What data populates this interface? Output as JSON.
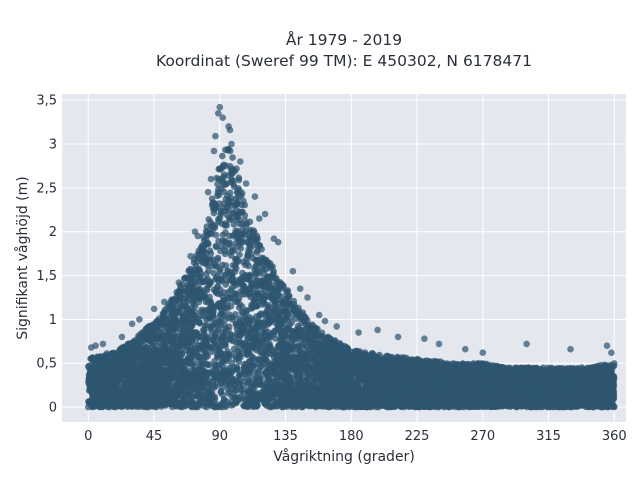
{
  "chart_data": {
    "type": "scatter",
    "title_line1": "År 1979 - 2019",
    "title_line2": "Koordinat (Sweref 99 TM): E 450302, N 6178471",
    "xlabel": "Vågriktning (grader)",
    "ylabel": "Signifikant våghöjd (m)",
    "xlim": [
      -18,
      368
    ],
    "ylim": [
      -0.17,
      3.57
    ],
    "x_ticks": [
      0,
      45,
      90,
      135,
      180,
      225,
      270,
      315,
      360
    ],
    "x_tick_labels": [
      "0",
      "45",
      "90",
      "135",
      "180",
      "225",
      "270",
      "315",
      "360"
    ],
    "y_ticks": [
      0,
      0.5,
      1,
      1.5,
      2,
      2.5,
      3,
      3.5
    ],
    "y_tick_labels": [
      "0",
      "0,5",
      "1",
      "1,5",
      "2",
      "2,5",
      "3",
      "3,5"
    ],
    "grid": true,
    "marker_color": "#2e5670",
    "background_color": "#e5e7ef",
    "envelope": {
      "x": [
        0,
        10,
        20,
        30,
        40,
        50,
        60,
        70,
        80,
        85,
        90,
        95,
        100,
        105,
        110,
        120,
        130,
        140,
        150,
        160,
        170,
        180,
        200,
        225,
        250,
        270,
        290,
        315,
        340,
        360
      ],
      "y_max": [
        0.55,
        0.6,
        0.65,
        0.75,
        0.9,
        1.05,
        1.3,
        1.6,
        2.0,
        2.4,
        2.8,
        3.0,
        2.85,
        2.55,
        2.25,
        1.8,
        1.5,
        1.25,
        1.0,
        0.85,
        0.75,
        0.65,
        0.6,
        0.55,
        0.5,
        0.5,
        0.45,
        0.45,
        0.45,
        0.5
      ]
    },
    "outliers": [
      {
        "x": 90,
        "y": 3.42
      },
      {
        "x": 89,
        "y": 3.35
      },
      {
        "x": 92,
        "y": 3.3
      },
      {
        "x": 96,
        "y": 3.2
      },
      {
        "x": 97,
        "y": 3.16
      },
      {
        "x": 87,
        "y": 3.09
      },
      {
        "x": 86,
        "y": 2.92
      },
      {
        "x": 98,
        "y": 3.0
      },
      {
        "x": 104,
        "y": 2.8
      },
      {
        "x": 108,
        "y": 2.55
      },
      {
        "x": 114,
        "y": 2.4
      },
      {
        "x": 121,
        "y": 2.2
      },
      {
        "x": 117,
        "y": 2.15
      },
      {
        "x": 127,
        "y": 1.92
      },
      {
        "x": 130,
        "y": 1.88
      },
      {
        "x": 140,
        "y": 1.55
      },
      {
        "x": 145,
        "y": 1.35
      },
      {
        "x": 150,
        "y": 1.25
      },
      {
        "x": 158,
        "y": 1.05
      },
      {
        "x": 162,
        "y": 0.98
      },
      {
        "x": 170,
        "y": 0.92
      },
      {
        "x": 185,
        "y": 0.85
      },
      {
        "x": 198,
        "y": 0.88
      },
      {
        "x": 212,
        "y": 0.8
      },
      {
        "x": 230,
        "y": 0.78
      },
      {
        "x": 240,
        "y": 0.72
      },
      {
        "x": 258,
        "y": 0.66
      },
      {
        "x": 270,
        "y": 0.62
      },
      {
        "x": 300,
        "y": 0.72
      },
      {
        "x": 330,
        "y": 0.66
      },
      {
        "x": 355,
        "y": 0.7
      },
      {
        "x": 358,
        "y": 0.62
      },
      {
        "x": 2,
        "y": 0.68
      },
      {
        "x": 5,
        "y": 0.7
      },
      {
        "x": 10,
        "y": 0.72
      },
      {
        "x": 45,
        "y": 1.12
      },
      {
        "x": 52,
        "y": 1.2
      },
      {
        "x": 62,
        "y": 1.42
      },
      {
        "x": 70,
        "y": 1.72
      },
      {
        "x": 75,
        "y": 1.95
      },
      {
        "x": 73,
        "y": 2.0
      },
      {
        "x": 82,
        "y": 2.45
      },
      {
        "x": 84,
        "y": 2.6
      },
      {
        "x": 30,
        "y": 0.95
      },
      {
        "x": 35,
        "y": 1.0
      },
      {
        "x": 23,
        "y": 0.8
      }
    ],
    "density_points": 9000,
    "seed": 7
  }
}
